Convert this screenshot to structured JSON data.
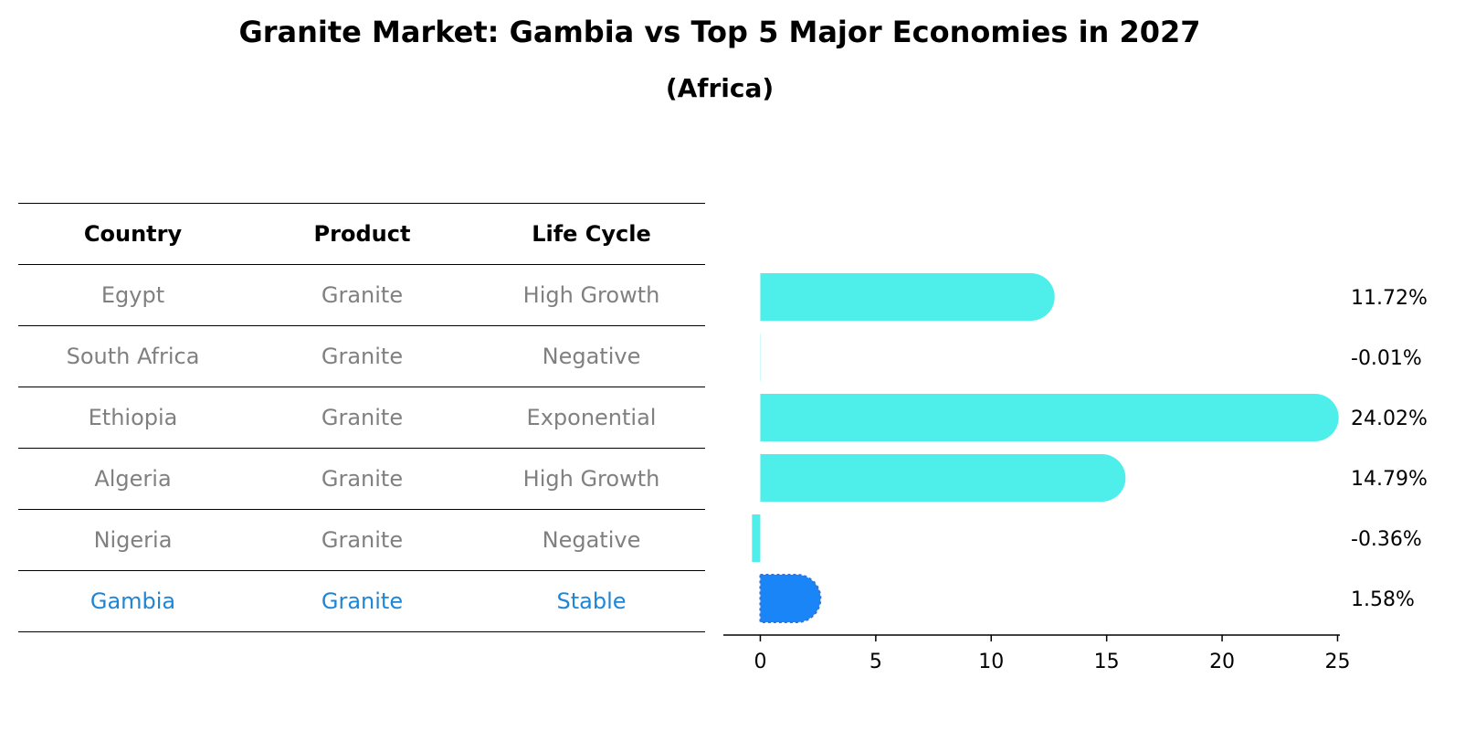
{
  "chart_data": {
    "type": "bar",
    "orientation": "horizontal",
    "title": "Granite Market: Gambia vs Top 5 Major Economies in 2027",
    "subtitle": "(Africa)",
    "categories": [
      "Egypt",
      "South Africa",
      "Ethiopia",
      "Algeria",
      "Nigeria",
      "Gambia"
    ],
    "values": [
      11.72,
      -0.01,
      24.02,
      14.79,
      -0.36,
      1.58
    ],
    "value_labels": [
      "11.72%",
      "-0.01%",
      "24.02%",
      "14.79%",
      "-0.36%",
      "1.58%"
    ],
    "highlight_category": "Gambia",
    "xlim": [
      -1.6,
      25.1
    ],
    "xticks": [
      0,
      5,
      10,
      15,
      20,
      25
    ],
    "xlabel": "",
    "ylabel": "",
    "colors": {
      "bar": "#4eeeea",
      "highlight_bar": "#1a85f6",
      "highlight_text": "#1f86d6",
      "body_text": "#808080"
    }
  },
  "table": {
    "columns": [
      "Country",
      "Product",
      "Life Cycle"
    ],
    "rows": [
      {
        "country": "Egypt",
        "product": "Granite",
        "life_cycle": "High Growth"
      },
      {
        "country": "South Africa",
        "product": "Granite",
        "life_cycle": "Negative"
      },
      {
        "country": "Ethiopia",
        "product": "Granite",
        "life_cycle": "Exponential"
      },
      {
        "country": "Algeria",
        "product": "Granite",
        "life_cycle": "High Growth"
      },
      {
        "country": "Nigeria",
        "product": "Granite",
        "life_cycle": "Negative"
      },
      {
        "country": "Gambia",
        "product": "Granite",
        "life_cycle": "Stable"
      }
    ]
  }
}
